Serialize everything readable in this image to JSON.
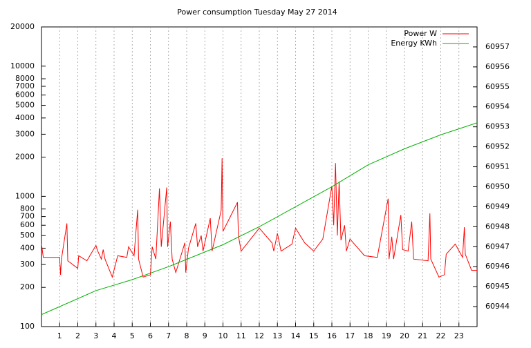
{
  "chart_data": {
    "type": "line",
    "title": "Power consumption Tuesday May 27 2014",
    "xlim": [
      0,
      24
    ],
    "xticks": [
      1,
      2,
      3,
      4,
      5,
      6,
      7,
      8,
      9,
      10,
      11,
      12,
      13,
      14,
      15,
      16,
      17,
      18,
      19,
      20,
      21,
      22,
      23
    ],
    "ylim": [
      100,
      20000
    ],
    "yscale": "log",
    "yticks": [
      100,
      200,
      300,
      400,
      500,
      600,
      700,
      800,
      1000,
      2000,
      3000,
      4000,
      5000,
      6000,
      7000,
      8000,
      10000,
      20000
    ],
    "y2lim": [
      60943,
      60958
    ],
    "y2ticks": [
      60944,
      60945,
      60946,
      60947,
      60948,
      60949,
      60950,
      60951,
      60952,
      60953,
      60954,
      60955,
      60956,
      60957
    ],
    "grid": "x",
    "legend": "top-right",
    "series": [
      {
        "name": "Power W",
        "color": "#ff0000",
        "x": [
          0,
          0.1,
          1.0,
          1.05,
          1.1,
          1.4,
          1.45,
          2.0,
          2.05,
          2.5,
          3.0,
          3.1,
          3.3,
          3.4,
          3.5,
          3.9,
          4.2,
          4.7,
          4.8,
          5.1,
          5.3,
          5.35,
          5.6,
          6.0,
          6.1,
          6.3,
          6.5,
          6.6,
          6.9,
          6.95,
          7.1,
          7.2,
          7.4,
          7.9,
          7.95,
          8.1,
          8.5,
          8.6,
          8.8,
          8.9,
          9.3,
          9.4,
          9.9,
          9.95,
          10.0,
          10.8,
          10.85,
          11.0,
          12.0,
          12.7,
          12.8,
          13.0,
          13.2,
          13.8,
          14.0,
          14.5,
          15.0,
          15.5,
          16.0,
          16.1,
          16.2,
          16.3,
          16.4,
          16.5,
          16.7,
          16.8,
          17.0,
          17.8,
          18.5,
          19.1,
          19.15,
          19.3,
          19.4,
          19.8,
          19.9,
          20.2,
          20.4,
          20.5,
          21.3,
          21.4,
          21.45,
          21.9,
          22.2,
          22.3,
          22.8,
          23.2,
          23.3,
          23.35,
          23.7,
          24
        ],
        "values": [
          430,
          340,
          340,
          250,
          330,
          620,
          320,
          280,
          350,
          320,
          420,
          380,
          330,
          390,
          330,
          240,
          350,
          340,
          410,
          350,
          790,
          330,
          240,
          250,
          410,
          330,
          1150,
          410,
          1170,
          410,
          640,
          330,
          260,
          440,
          260,
          400,
          620,
          410,
          500,
          380,
          680,
          380,
          780,
          1960,
          540,
          900,
          500,
          380,
          570,
          440,
          380,
          520,
          380,
          430,
          570,
          440,
          380,
          470,
          1200,
          600,
          1800,
          500,
          1300,
          460,
          600,
          380,
          470,
          350,
          340,
          960,
          330,
          490,
          330,
          720,
          390,
          380,
          640,
          330,
          320,
          740,
          330,
          240,
          250,
          360,
          430,
          340,
          580,
          360,
          270,
          270
        ]
      },
      {
        "name": "Energy KWh",
        "color": "#00b000",
        "axis": "y2",
        "x": [
          0,
          3,
          5,
          7,
          10,
          12,
          14,
          16,
          18,
          20,
          22,
          24
        ],
        "values": [
          60943.6,
          60944.8,
          60945.35,
          60946.0,
          60947.1,
          60948.0,
          60949.0,
          60950.0,
          60951.1,
          60951.9,
          60952.6,
          60953.2
        ]
      }
    ]
  }
}
